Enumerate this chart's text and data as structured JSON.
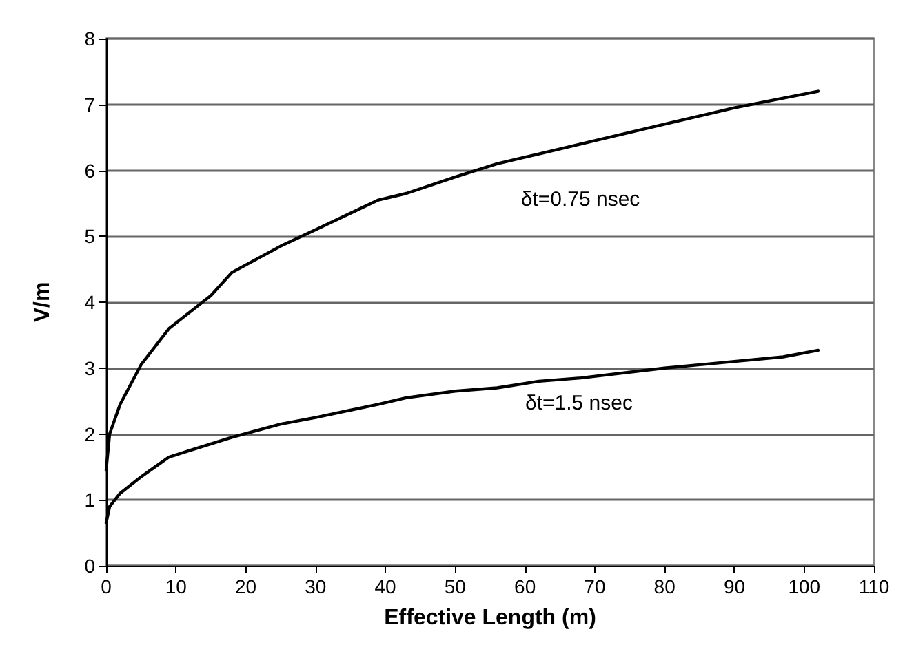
{
  "chart_data": {
    "type": "line",
    "xlabel": "Effective Length (m)",
    "ylabel": "V/m",
    "xlim": [
      0,
      110
    ],
    "xticks": [
      0,
      10,
      20,
      30,
      40,
      50,
      60,
      70,
      80,
      90,
      100,
      110
    ],
    "ylim": [
      0,
      8
    ],
    "yticks": [
      0,
      1,
      2,
      3,
      4,
      5,
      6,
      7,
      8
    ],
    "grid": "y",
    "marker": "none",
    "line_style": "solid",
    "series": [
      {
        "color": "#000000",
        "x": [
          0,
          0.5,
          2,
          5,
          9,
          15,
          18,
          25,
          30,
          34,
          39,
          43,
          50,
          56,
          62,
          70,
          80,
          90,
          102
        ],
        "values": [
          1.45,
          2.0,
          2.45,
          3.05,
          3.6,
          4.1,
          4.45,
          4.85,
          5.1,
          5.3,
          5.55,
          5.65,
          5.9,
          6.1,
          6.25,
          6.45,
          6.7,
          6.95,
          7.2
        ]
      },
      {
        "color": "#000000",
        "x": [
          0,
          0.5,
          2,
          5,
          7,
          9,
          12,
          18,
          25,
          30,
          39,
          43,
          50,
          56,
          62,
          68,
          80,
          90,
          97,
          102
        ],
        "values": [
          0.65,
          0.9,
          1.1,
          1.35,
          1.5,
          1.65,
          1.75,
          1.95,
          2.15,
          2.25,
          2.45,
          2.55,
          2.65,
          2.7,
          2.8,
          2.85,
          3.0,
          3.1,
          3.17,
          3.27
        ]
      }
    ],
    "annotations": [
      "δt=0.75 nsec",
      "δt=1.5 nsec"
    ]
  }
}
